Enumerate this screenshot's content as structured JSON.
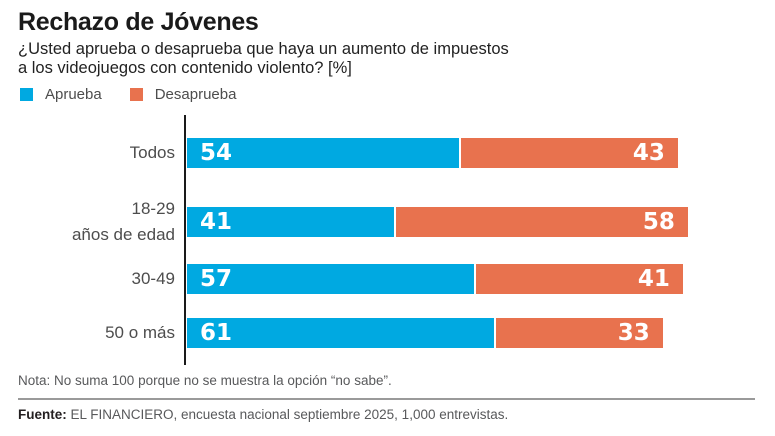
{
  "header": {
    "title": "Rechazo de Jóvenes",
    "subtitle_line1": "¿Usted aprueba o desaprueba que haya un aumento de impuestos",
    "subtitle_line2": "a los videojuegos con contenido violento?  [%]"
  },
  "legend": {
    "items": [
      {
        "label": "Aprueba",
        "color": "#00A9E1"
      },
      {
        "label": "Desaprueba",
        "color": "#E8724E"
      }
    ]
  },
  "chart_data": {
    "type": "bar",
    "orientation": "horizontal",
    "stacked": true,
    "title": "Rechazo de Jóvenes",
    "subtitle": "¿Usted aprueba o desaprueba que haya un aumento de impuestos a los videojuegos con contenido violento? [%]",
    "categories": [
      "Todos",
      "18-29 años de edad",
      "30-49",
      "50 o más"
    ],
    "categories_display": [
      [
        "Todos"
      ],
      [
        "18-29",
        "años de edad"
      ],
      [
        "30-49"
      ],
      [
        "50 o más"
      ]
    ],
    "series": [
      {
        "name": "Aprueba",
        "color": "#00A9E1",
        "values": [
          54,
          41,
          57,
          61
        ]
      },
      {
        "name": "Desaprueba",
        "color": "#E8724E",
        "values": [
          43,
          58,
          41,
          33
        ]
      }
    ],
    "xlim": [
      0,
      100
    ],
    "grid": false,
    "legend_position": "top-left",
    "value_labels": "inside-white-bold"
  },
  "footer": {
    "note": "Nota: No suma 100 porque no se muestra la opción “no sabe”.",
    "source_label": "Fuente:",
    "source_text": "EL FINANCIERO, encuesta nacional septiembre 2025, 1,000 entrevistas."
  }
}
